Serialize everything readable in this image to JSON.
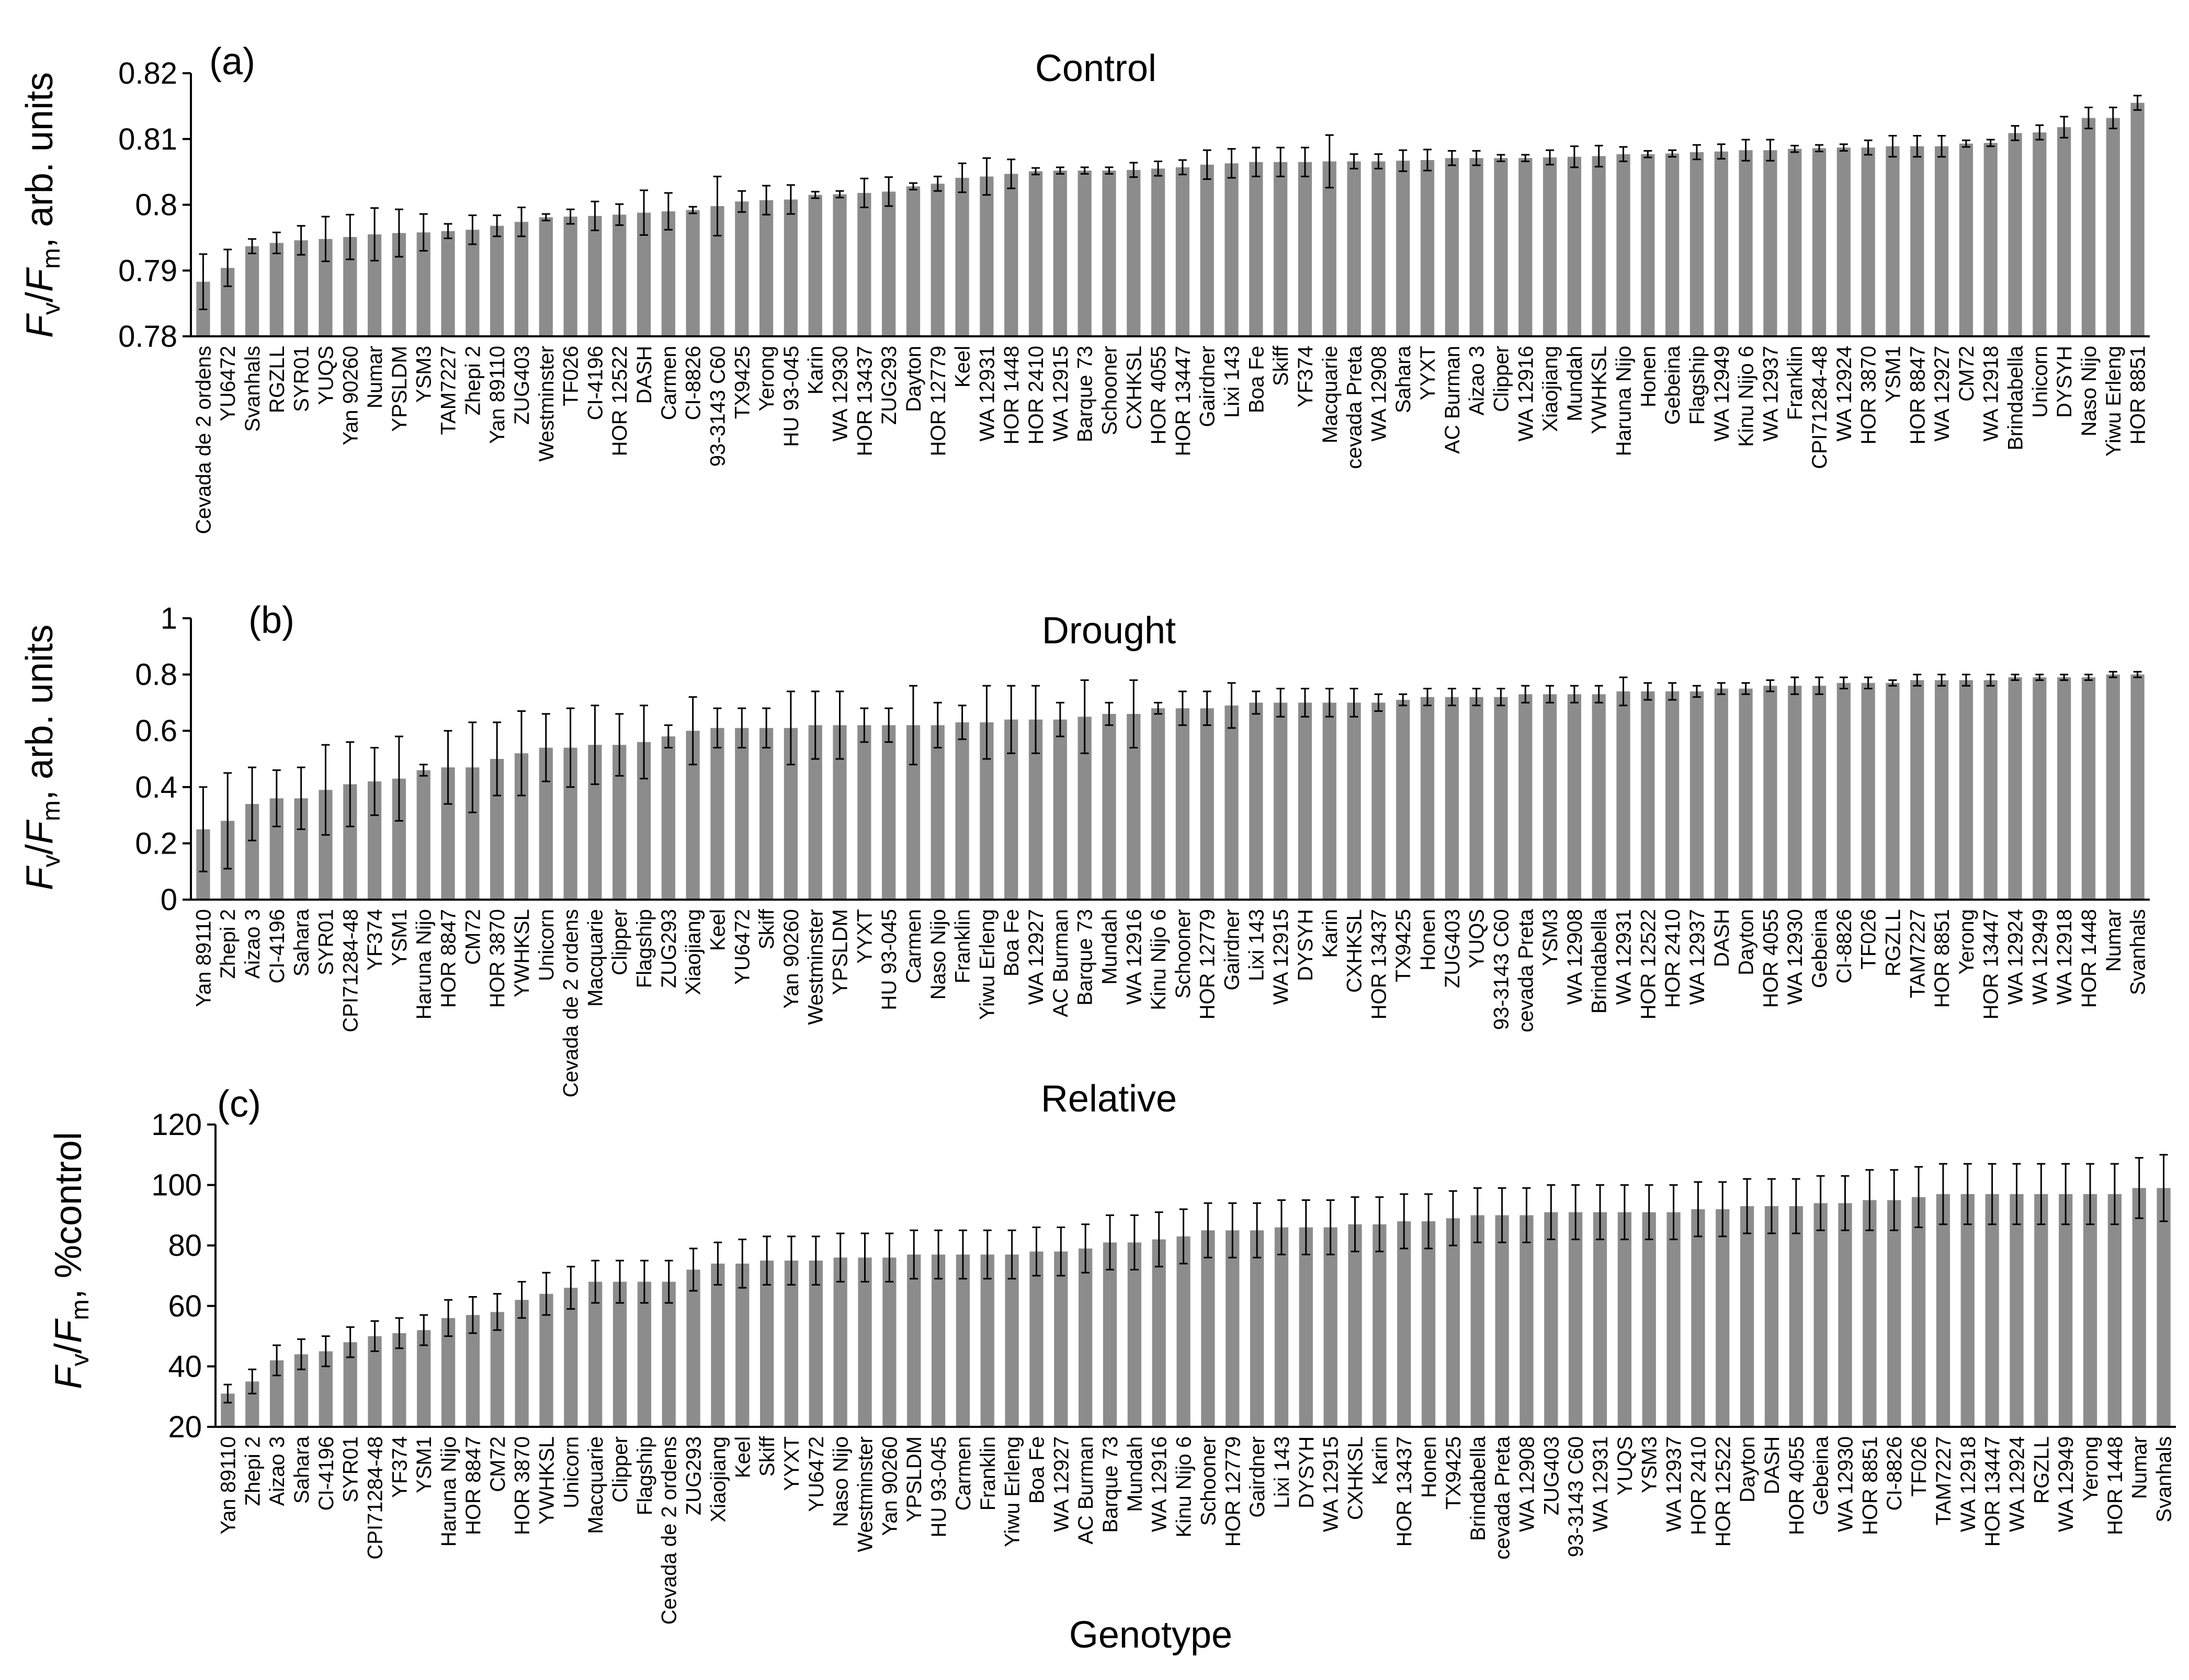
{
  "colors": {
    "bar": "#8c8c8c",
    "axis": "#000000",
    "error_bar": "#000000"
  },
  "xlabel": "Genotype",
  "chart_data": [
    {
      "type": "bar",
      "panel_label": "(a)",
      "title": "Control",
      "ylabel": "Fv/Fm, arb. units",
      "ylabel_parts": {
        "f1": "F",
        "s1": "v",
        "slash": "/",
        "f2": "F",
        "s2": "m",
        "rest": ", arb. units"
      },
      "ylim": [
        0.78,
        0.82
      ],
      "yticks": [
        0.78,
        0.79,
        0.8,
        0.81,
        0.82
      ],
      "ytick_labels": [
        "0.78",
        "0.79",
        "0.8",
        "0.81",
        "0.82"
      ],
      "categories": [
        "Cevada de 2 ordens",
        "YU6472",
        "Svanhals",
        "RGZLL",
        "SYR01",
        "YUQS",
        "Yan 90260",
        "Numar",
        "YPSLDM",
        "YSM3",
        "TAM7227",
        "Zhepi 2",
        "Yan 89110",
        "ZUG403",
        "Westminster",
        "TF026",
        "CI-4196",
        "HOR 12522",
        "DASH",
        "Carmen",
        "CI-8826",
        "93-3143 C60",
        "TX9425",
        "Yerong",
        "HU 93-045",
        "Karin",
        "WA 12930",
        "HOR 13437",
        "ZUG293",
        "Dayton",
        "HOR 12779",
        "Keel",
        "WA 12931",
        "HOR 1448",
        "HOR 2410",
        "WA 12915",
        "Barque 73",
        "Schooner",
        "CXHKSL",
        "HOR 4055",
        "HOR 13447",
        "Gairdner",
        "Lixi 143",
        "Boa Fe",
        "Skiff",
        "YF374",
        "Macquarie",
        "cevada Preta",
        "WA 12908",
        "Sahara",
        "YYXT",
        "AC Burman",
        "Aizao 3",
        "Clipper",
        "WA 12916",
        "Xiaojiang",
        "Mundah",
        "YWHKSL",
        "Haruna Nijo",
        "Honen",
        "Gebeina",
        "Flagship",
        "WA 12949",
        "Kinu Nijo 6",
        "WA 12937",
        "Franklin",
        "CPI71284-48",
        "WA 12924",
        "HOR 3870",
        "YSM1",
        "HOR 8847",
        "WA 12927",
        "CM72",
        "WA 12918",
        "Brindabella",
        "Unicorn",
        "DYSYH",
        "Naso Nijo",
        "Yiwu Erleng",
        "HOR 8851"
      ],
      "values": [
        0.7883,
        0.7904,
        0.7937,
        0.7942,
        0.7946,
        0.7948,
        0.7951,
        0.7955,
        0.7957,
        0.7958,
        0.796,
        0.7962,
        0.7968,
        0.7974,
        0.7981,
        0.7982,
        0.7983,
        0.7985,
        0.7988,
        0.799,
        0.7992,
        0.7998,
        0.8005,
        0.8007,
        0.8008,
        0.8015,
        0.8016,
        0.8018,
        0.802,
        0.8028,
        0.8032,
        0.8041,
        0.8043,
        0.8047,
        0.8051,
        0.8052,
        0.8052,
        0.8052,
        0.8053,
        0.8055,
        0.8057,
        0.8061,
        0.8063,
        0.8065,
        0.8065,
        0.8065,
        0.8066,
        0.8066,
        0.8066,
        0.8067,
        0.8068,
        0.8071,
        0.8071,
        0.8071,
        0.8071,
        0.8072,
        0.8073,
        0.8074,
        0.8077,
        0.8077,
        0.8078,
        0.808,
        0.8081,
        0.8083,
        0.8083,
        0.8085,
        0.8086,
        0.8087,
        0.8087,
        0.8089,
        0.8089,
        0.8089,
        0.8093,
        0.8094,
        0.8109,
        0.811,
        0.8118,
        0.8132,
        0.8132,
        0.8155
      ],
      "errors": [
        0.0042,
        0.0028,
        0.0011,
        0.0016,
        0.0022,
        0.0034,
        0.0034,
        0.004,
        0.0036,
        0.0028,
        0.0011,
        0.0022,
        0.0016,
        0.0022,
        0.0005,
        0.0011,
        0.0022,
        0.0016,
        0.0034,
        0.0028,
        0.0005,
        0.0045,
        0.0016,
        0.0022,
        0.0022,
        0.0005,
        0.0005,
        0.0022,
        0.0022,
        0.0005,
        0.0011,
        0.0022,
        0.0028,
        0.0022,
        0.0005,
        0.0005,
        0.0005,
        0.0005,
        0.0011,
        0.0011,
        0.0011,
        0.0022,
        0.0022,
        0.0022,
        0.0022,
        0.0022,
        0.004,
        0.0011,
        0.0011,
        0.0016,
        0.0016,
        0.0011,
        0.0011,
        0.0005,
        0.0005,
        0.0011,
        0.0016,
        0.0016,
        0.0011,
        0.0005,
        0.0005,
        0.0011,
        0.0011,
        0.0016,
        0.0016,
        0.0005,
        0.0005,
        0.0005,
        0.0011,
        0.0016,
        0.0016,
        0.0016,
        0.0005,
        0.0005,
        0.0011,
        0.0011,
        0.0016,
        0.0016,
        0.0016,
        0.0011
      ]
    },
    {
      "type": "bar",
      "panel_label": "(b)",
      "title": "Drought",
      "ylabel": "Fv/Fm, arb. units",
      "ylabel_parts": {
        "f1": "F",
        "s1": "v",
        "slash": "/",
        "f2": "F",
        "s2": "m",
        "rest": ", arb. units"
      },
      "ylim": [
        0,
        1
      ],
      "yticks": [
        0,
        0.2,
        0.4,
        0.6,
        0.8,
        1
      ],
      "ytick_labels": [
        "0",
        "0.2",
        "0.4",
        "0.6",
        "0.8",
        "1"
      ],
      "categories": [
        "Yan 89110",
        "Zhepi 2",
        "Aizao 3",
        "CI-4196",
        "Sahara",
        "SYR01",
        "CPI71284-48",
        "YF374",
        "YSM1",
        "Haruna Nijo",
        "HOR 8847",
        "CM72",
        "HOR 3870",
        "YWHKSL",
        "Unicorn",
        "Cevada de 2 ordens",
        "Macquarie",
        "Clipper",
        "Flagship",
        "ZUG293",
        "Xiaojiang",
        "Keel",
        "YU6472",
        "Skiff",
        "Yan 90260",
        "Westminster",
        "YPSLDM",
        "YYXT",
        "HU 93-045",
        "Carmen",
        "Naso Nijo",
        "Franklin",
        "Yiwu Erleng",
        "Boa Fe",
        "WA 12927",
        "AC Burman",
        "Barque 73",
        "Mundah",
        "WA 12916",
        "Kinu Nijo 6",
        "Schooner",
        "HOR 12779",
        "Gairdner",
        "Lixi 143",
        "WA 12915",
        "DYSYH",
        "Karin",
        "CXHKSL",
        "HOR 13437",
        "TX9425",
        "Honen",
        "ZUG403",
        "YUQS",
        "93-3143 C60",
        "cevada Preta",
        "YSM3",
        "WA 12908",
        "Brindabella",
        "WA 12931",
        "HOR 12522",
        "HOR 2410",
        "WA 12937",
        "DASH",
        "Dayton",
        "HOR 4055",
        "WA 12930",
        "Gebeina",
        "CI-8826",
        "TF026",
        "RGZLL",
        "TAM7227",
        "HOR 8851",
        "Yerong",
        "HOR 13447",
        "WA 12924",
        "WA 12949",
        "WA 12918",
        "HOR 1448",
        "Numar",
        "Svanhals"
      ],
      "values": [
        0.25,
        0.28,
        0.34,
        0.36,
        0.36,
        0.39,
        0.41,
        0.42,
        0.43,
        0.46,
        0.47,
        0.47,
        0.5,
        0.52,
        0.54,
        0.54,
        0.55,
        0.55,
        0.56,
        0.58,
        0.6,
        0.61,
        0.61,
        0.61,
        0.61,
        0.62,
        0.62,
        0.62,
        0.62,
        0.62,
        0.62,
        0.63,
        0.63,
        0.64,
        0.64,
        0.64,
        0.65,
        0.66,
        0.66,
        0.68,
        0.68,
        0.68,
        0.69,
        0.7,
        0.7,
        0.7,
        0.7,
        0.7,
        0.7,
        0.71,
        0.72,
        0.72,
        0.72,
        0.72,
        0.73,
        0.73,
        0.73,
        0.73,
        0.74,
        0.74,
        0.74,
        0.74,
        0.75,
        0.75,
        0.76,
        0.76,
        0.76,
        0.77,
        0.77,
        0.77,
        0.78,
        0.78,
        0.78,
        0.78,
        0.79,
        0.79,
        0.79,
        0.79,
        0.8,
        0.8
      ],
      "errors": [
        0.15,
        0.17,
        0.13,
        0.1,
        0.11,
        0.16,
        0.15,
        0.12,
        0.15,
        0.02,
        0.13,
        0.16,
        0.13,
        0.15,
        0.12,
        0.14,
        0.14,
        0.11,
        0.13,
        0.04,
        0.12,
        0.07,
        0.07,
        0.07,
        0.13,
        0.12,
        0.12,
        0.06,
        0.06,
        0.14,
        0.08,
        0.06,
        0.13,
        0.12,
        0.12,
        0.06,
        0.13,
        0.04,
        0.12,
        0.02,
        0.06,
        0.06,
        0.08,
        0.04,
        0.05,
        0.05,
        0.05,
        0.05,
        0.03,
        0.02,
        0.03,
        0.03,
        0.03,
        0.03,
        0.03,
        0.03,
        0.03,
        0.03,
        0.05,
        0.03,
        0.03,
        0.02,
        0.02,
        0.02,
        0.02,
        0.03,
        0.03,
        0.02,
        0.02,
        0.01,
        0.02,
        0.02,
        0.02,
        0.02,
        0.01,
        0.01,
        0.01,
        0.01,
        0.01,
        0.01
      ]
    },
    {
      "type": "bar",
      "panel_label": "(c)",
      "title": "Relative",
      "ylabel": "Fv/Fm, %control",
      "ylabel_parts": {
        "f1": "F",
        "s1": "v",
        "slash": "/",
        "f2": "F",
        "s2": "m",
        "rest": ", %control"
      },
      "ylim": [
        20,
        120
      ],
      "yticks": [
        20,
        40,
        60,
        80,
        100,
        120
      ],
      "ytick_labels": [
        "20",
        "40",
        "60",
        "80",
        "100",
        "120"
      ],
      "categories": [
        "Yan 89110",
        "Zhepi 2",
        "Aizao 3",
        "Sahara",
        "CI-4196",
        "SYR01",
        "CPI71284-48",
        "YF374",
        "YSM1",
        "Haruna Nijo",
        "HOR 8847",
        "CM72",
        "HOR 3870",
        "YWHKSL",
        "Unicorn",
        "Macquarie",
        "Clipper",
        "Flagship",
        "Cevada de 2 ordens",
        "ZUG293",
        "Xiaojiang",
        "Keel",
        "Skiff",
        "YYXT",
        "YU6472",
        "Naso Nijo",
        "Westminster",
        "Yan 90260",
        "YPSLDM",
        "HU 93-045",
        "Carmen",
        "Franklin",
        "Yiwu Erleng",
        "Boa Fe",
        "WA 12927",
        "AC Burman",
        "Barque 73",
        "Mundah",
        "WA 12916",
        "Kinu Nijo 6",
        "Schooner",
        "HOR 12779",
        "Gairdner",
        "Lixi 143",
        "DYSYH",
        "WA 12915",
        "CXHKSL",
        "Karin",
        "HOR 13437",
        "Honen",
        "TX9425",
        "Brindabella",
        "cevada Preta",
        "WA 12908",
        "ZUG403",
        "93-3143 C60",
        "WA 12931",
        "YUQS",
        "YSM3",
        "WA 12937",
        "HOR 2410",
        "HOR 12522",
        "Dayton",
        "DASH",
        "HOR 4055",
        "Gebeina",
        "WA 12930",
        "HOR 8851",
        "CI-8826",
        "TF026",
        "TAM7227",
        "WA 12918",
        "HOR 13447",
        "WA 12924",
        "RGZLL",
        "WA 12949",
        "Yerong",
        "HOR 1448",
        "Numar",
        "Svanhals"
      ],
      "values": [
        31,
        35,
        42,
        44,
        45,
        48,
        50,
        51,
        52,
        56,
        57,
        58,
        62,
        64,
        66,
        68,
        68,
        68,
        68,
        72,
        74,
        74,
        75,
        75,
        75,
        76,
        76,
        76,
        77,
        77,
        77,
        77,
        77,
        78,
        78,
        79,
        81,
        81,
        82,
        83,
        85,
        85,
        85,
        86,
        86,
        86,
        87,
        87,
        88,
        88,
        89,
        90,
        90,
        90,
        91,
        91,
        91,
        91,
        91,
        91,
        92,
        92,
        93,
        93,
        93,
        94,
        94,
        95,
        95,
        96,
        97,
        97,
        97,
        97,
        97,
        97,
        97,
        97,
        99,
        99
      ],
      "errors": [
        3,
        4,
        5,
        5,
        5,
        5,
        5,
        5,
        5,
        6,
        6,
        6,
        6,
        7,
        7,
        7,
        7,
        7,
        7,
        7,
        7,
        8,
        8,
        8,
        8,
        8,
        8,
        8,
        8,
        8,
        8,
        8,
        8,
        8,
        8,
        8,
        9,
        9,
        9,
        9,
        9,
        9,
        9,
        9,
        9,
        9,
        9,
        9,
        9,
        9,
        9,
        9,
        9,
        9,
        9,
        9,
        9,
        9,
        9,
        9,
        9,
        9,
        9,
        9,
        9,
        9,
        9,
        10,
        10,
        10,
        10,
        10,
        10,
        10,
        10,
        10,
        10,
        10,
        10,
        11
      ]
    }
  ]
}
